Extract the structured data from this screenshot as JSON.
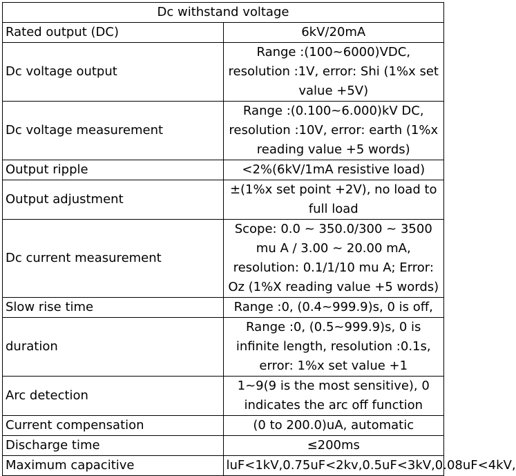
{
  "table": {
    "title": "Dc withstand voltage",
    "rows": [
      {
        "param": "Rated output (DC)",
        "value": "6kV/20mA"
      },
      {
        "param": "Dc voltage output",
        "value": "Range :(100~6000)VDC, resolution :1V, error: Shi (1%x set value +5V)"
      },
      {
        "param": "Dc voltage measurement",
        "value": "Range :(0.100~6.000)kV DC, resolution :10V, error: earth (1%x reading value +5 words)"
      },
      {
        "param": "Output ripple",
        "value": "<2%(6kV/1mA resistive load)"
      },
      {
        "param": "Output adjustment",
        "value": "±(1%x set point +2V), no load to full load"
      },
      {
        "param": "Dc current measurement",
        "value": "Scope: 0.0 ~ 350.0/300 ~ 3500 mu A / 3.00 ~ 20.00 mA, resolution: 0.1/1/10 mu A; Error: Oz (1%X reading value +5 words)"
      },
      {
        "param": "Slow rise time",
        "value": "Range :0, (0.4~999.9)s, 0 is off,"
      },
      {
        "param": "duration",
        "value": "Range :0, (0.5~999.9)s, 0 is infinite length, resolution :0.1s, error: 1%x set value +1"
      },
      {
        "param": "Arc detection",
        "value": "1~9(9 is the most sensitive), 0 indicates the arc off function"
      },
      {
        "param": "Current compensation",
        "value": "(0 to 200.0)uA, automatic"
      },
      {
        "param": "Discharge time",
        "value": "≤200ms"
      },
      {
        "param": "Maximum capacitive",
        "value": "luF<1kV,0.75uF<2kv,0.5uF<3kV,0.08uF<4kV,"
      }
    ]
  }
}
